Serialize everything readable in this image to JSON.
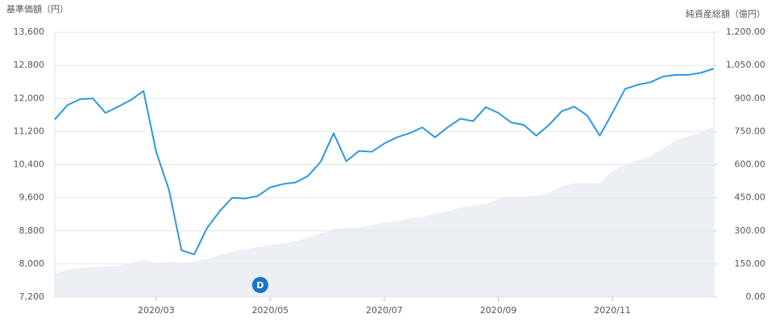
{
  "chart_data": {
    "type": "line",
    "y_label": "基準価額（円）",
    "y2_label": "純資産総額（億円）",
    "categories": [
      null,
      null,
      null,
      null,
      null,
      null,
      null,
      null,
      "2020/03",
      null,
      null,
      null,
      null,
      null,
      null,
      null,
      null,
      "2020/05",
      null,
      null,
      null,
      null,
      null,
      null,
      null,
      null,
      "2020/07",
      null,
      null,
      null,
      null,
      null,
      null,
      null,
      null,
      "2020/09",
      null,
      null,
      null,
      null,
      null,
      null,
      null,
      null,
      "2020/11",
      null,
      null,
      null,
      null,
      null,
      null,
      null,
      null
    ],
    "series": [
      {
        "type": "area",
        "axis": "y2",
        "color": "#eceff4",
        "values": [
          106,
          124,
          132,
          135,
          139,
          143,
          154,
          168,
          154,
          161,
          154,
          161,
          172,
          190,
          205,
          216,
          227,
          234,
          242,
          253,
          271,
          289,
          307,
          315,
          315,
          326,
          337,
          344,
          355,
          362,
          377,
          388,
          406,
          414,
          421,
          443,
          454,
          454,
          461,
          472,
          501,
          516,
          516,
          516,
          571,
          600,
          619,
          637,
          673,
          710,
          728,
          747,
          772
        ]
      },
      {
        "type": "line",
        "axis": "y",
        "color": "#2f96e3",
        "values": [
          11490,
          11840,
          11980,
          12000,
          11650,
          11800,
          11960,
          12180,
          10710,
          9800,
          8330,
          8230,
          8860,
          9270,
          9600,
          9580,
          9640,
          9850,
          9930,
          9970,
          10130,
          10480,
          11160,
          10480,
          10730,
          10710,
          10910,
          11060,
          11160,
          11300,
          11060,
          11300,
          11510,
          11450,
          11790,
          11650,
          11420,
          11360,
          11100,
          11360,
          11690,
          11800,
          11590,
          11100,
          11650,
          12230,
          12330,
          12390,
          12530,
          12570,
          12570,
          12620,
          12720
        ]
      }
    ],
    "ylim": [
      7200,
      13600
    ],
    "yticks": [
      {
        "value": 7200,
        "label": "7,200"
      },
      {
        "value": 8000,
        "label": "8,000"
      },
      {
        "value": 8800,
        "label": "8,800"
      },
      {
        "value": 9600,
        "label": "9,600"
      },
      {
        "value": 10400,
        "label": "10,400"
      },
      {
        "value": 11200,
        "label": "11,200"
      },
      {
        "value": 12000,
        "label": "12,000"
      },
      {
        "value": 12800,
        "label": "12,800"
      },
      {
        "value": 13600,
        "label": "13,600"
      }
    ],
    "y2lim": [
      0,
      1200
    ],
    "y2ticks": [
      {
        "value": 0,
        "label": "0.00"
      },
      {
        "value": 150,
        "label": "150.00"
      },
      {
        "value": 300,
        "label": "300.00"
      },
      {
        "value": 450,
        "label": "450.00"
      },
      {
        "value": 600,
        "label": "600.00"
      },
      {
        "value": 750,
        "label": "750.00"
      },
      {
        "value": 900,
        "label": "900.00"
      },
      {
        "value": 1050,
        "label": "1,050.00"
      },
      {
        "value": 1200,
        "label": "1,200.00"
      }
    ],
    "grid": true,
    "annotations": [
      "D"
    ]
  }
}
